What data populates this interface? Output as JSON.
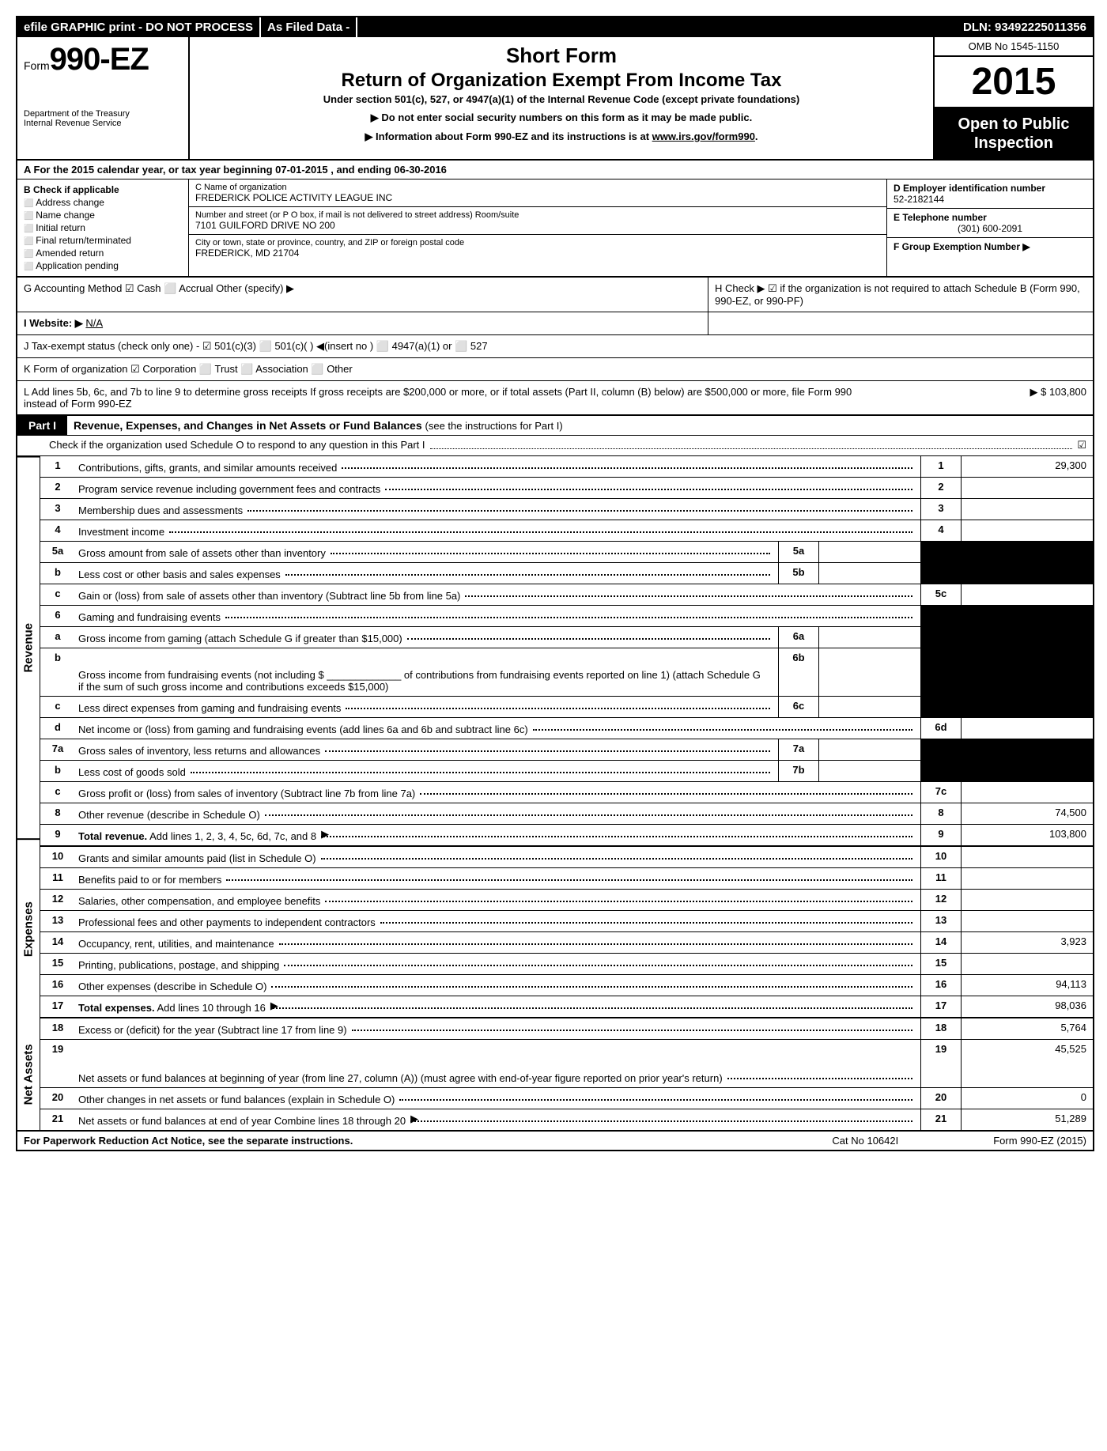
{
  "topbar": {
    "efile": "efile GRAPHIC print - DO NOT PROCESS",
    "asfiled": "As Filed Data -",
    "dln": "DLN: 93492225011356"
  },
  "header": {
    "form_prefix": "Form",
    "form_num": "990-EZ",
    "dept1": "Department of the Treasury",
    "dept2": "Internal Revenue Service",
    "title1": "Short Form",
    "title2": "Return of Organization Exempt From Income Tax",
    "subtitle": "Under section 501(c), 527, or 4947(a)(1) of the Internal Revenue Code (except private foundations)",
    "instr1": "▶ Do not enter social security numbers on this form as it may be made public.",
    "instr2_pre": "▶ Information about Form 990-EZ and its instructions is at ",
    "instr2_link": "www.irs.gov/form990",
    "instr2_post": ".",
    "omb": "OMB No  1545-1150",
    "year": "2015",
    "open": "Open to Public Inspection"
  },
  "rowA": "A  For the 2015 calendar year, or tax year beginning 07-01-2015                           , and ending 06-30-2016",
  "B": {
    "head": "B  Check if applicable",
    "items": [
      "Address change",
      "Name change",
      "Initial return",
      "Final return/terminated",
      "Amended return",
      "Application pending"
    ]
  },
  "C": {
    "name_lbl": "C Name of organization",
    "name": "FREDERICK POLICE ACTIVITY LEAGUE INC",
    "addr_lbl": "Number and street (or P  O  box, if mail is not delivered to street address) Room/suite",
    "addr": "7101 GUILFORD DRIVE NO 200",
    "city_lbl": "City or town, state or province, country, and ZIP or foreign postal code",
    "city": "FREDERICK, MD  21704"
  },
  "D": {
    "ein_lbl": "D Employer identification number",
    "ein": "52-2182144",
    "tel_lbl": "E Telephone number",
    "tel": "(301) 600-2091",
    "grp_lbl": "F Group Exemption Number   ▶"
  },
  "G": {
    "label": "G Accounting Method   ☑ Cash  ⬜ Accrual   Other (specify) ▶",
    "H": "H   Check ▶ ☑ if the organization is not required to attach Schedule B (Form 990, 990-EZ, or 990-PF)"
  },
  "I": {
    "label": "I Website: ▶",
    "val": "N/A"
  },
  "J": "J Tax-exempt status (check only one) - ☑ 501(c)(3) ⬜ 501(c)(  ) ◀(insert no ) ⬜ 4947(a)(1) or ⬜ 527",
  "K": "K Form of organization   ☑ Corporation  ⬜ Trust  ⬜ Association  ⬜ Other",
  "L": {
    "text": "L Add lines 5b, 6c, and 7b to line 9 to determine gross receipts  If gross receipts are $200,000 or more, or if total assets (Part II, column (B) below) are $500,000 or more, file Form 990 instead of Form 990-EZ",
    "amt": "▶ $ 103,800"
  },
  "part1": {
    "badge": "Part I",
    "title": "Revenue, Expenses, and Changes in Net Assets or Fund Balances ",
    "note": "(see the instructions for Part I)",
    "checkO": "Check if the organization used Schedule O to respond to any question in this Part I",
    "checkO_mark": "☑"
  },
  "sections": {
    "revenue": "Revenue",
    "expenses": "Expenses",
    "netassets": "Net Assets"
  },
  "lines": [
    {
      "n": "1",
      "d": "Contributions, gifts, grants, and similar amounts received",
      "ref": "1",
      "amt": "29,300"
    },
    {
      "n": "2",
      "d": "Program service revenue including government fees and contracts",
      "ref": "2",
      "amt": ""
    },
    {
      "n": "3",
      "d": "Membership dues and assessments",
      "ref": "3",
      "amt": ""
    },
    {
      "n": "4",
      "d": "Investment income",
      "ref": "4",
      "amt": ""
    },
    {
      "n": "5a",
      "d": "Gross amount from sale of assets other than inventory",
      "sub": "5a",
      "subval": "",
      "ref_blk": true
    },
    {
      "n": "b",
      "d": "Less  cost or other basis and sales expenses",
      "sub": "5b",
      "subval": "",
      "ref_blk": true
    },
    {
      "n": "c",
      "d": "Gain or (loss) from sale of assets other than inventory (Subtract line 5b from line 5a)",
      "ref": "5c",
      "amt": ""
    },
    {
      "n": "6",
      "d": "Gaming and fundraising events",
      "ref_blk": true,
      "amt_blk": true
    },
    {
      "n": "a",
      "d": "Gross income from gaming (attach Schedule G if greater than $15,000)",
      "sub": "6a",
      "subval": "",
      "ref_blk": true
    },
    {
      "n": "b",
      "d": "Gross income from fundraising events (not including $ _____________ of contributions from fundraising events reported on line 1) (attach Schedule G if the sum of such gross income and contributions exceeds $15,000)",
      "sub": "6b",
      "subval": "",
      "ref_blk": true,
      "tall": true
    },
    {
      "n": "c",
      "d": "Less  direct expenses from gaming and fundraising events",
      "sub": "6c",
      "subval": "",
      "ref_blk": true
    },
    {
      "n": "d",
      "d": "Net income or (loss) from gaming and fundraising events (add lines 6a and 6b and subtract line 6c)",
      "ref": "6d",
      "amt": ""
    },
    {
      "n": "7a",
      "d": "Gross sales of inventory, less returns and allowances",
      "sub": "7a",
      "subval": "",
      "ref_blk": true
    },
    {
      "n": "b",
      "d": "Less  cost of goods sold",
      "sub": "7b",
      "subval": "",
      "ref_blk": true
    },
    {
      "n": "c",
      "d": "Gross profit or (loss) from sales of inventory (Subtract line 7b from line 7a)",
      "ref": "7c",
      "amt": ""
    },
    {
      "n": "8",
      "d": "Other revenue (describe in Schedule O)",
      "ref": "8",
      "amt": "74,500"
    },
    {
      "n": "9",
      "d": "Total revenue. Add lines 1, 2, 3, 4, 5c, 6d, 7c, and 8",
      "ref": "9",
      "amt": "103,800",
      "bold": true,
      "arrow": true
    },
    {
      "n": "10",
      "d": "Grants and similar amounts paid (list in Schedule O)",
      "ref": "10",
      "amt": ""
    },
    {
      "n": "11",
      "d": "Benefits paid to or for members",
      "ref": "11",
      "amt": ""
    },
    {
      "n": "12",
      "d": "Salaries, other compensation, and employee benefits",
      "ref": "12",
      "amt": ""
    },
    {
      "n": "13",
      "d": "Professional fees and other payments to independent contractors",
      "ref": "13",
      "amt": ""
    },
    {
      "n": "14",
      "d": "Occupancy, rent, utilities, and maintenance",
      "ref": "14",
      "amt": "3,923"
    },
    {
      "n": "15",
      "d": "Printing, publications, postage, and shipping",
      "ref": "15",
      "amt": ""
    },
    {
      "n": "16",
      "d": "Other expenses (describe in Schedule O)",
      "ref": "16",
      "amt": "94,113"
    },
    {
      "n": "17",
      "d": "Total expenses. Add lines 10 through 16",
      "ref": "17",
      "amt": "98,036",
      "bold": true,
      "arrow": true
    },
    {
      "n": "18",
      "d": "Excess or (deficit) for the year (Subtract line 17 from line 9)",
      "ref": "18",
      "amt": "5,764"
    },
    {
      "n": "19",
      "d": "Net assets or fund balances at beginning of year (from line 27, column (A)) (must agree with end-of-year figure reported on prior year's return)",
      "ref": "19",
      "amt": "45,525",
      "tall": true
    },
    {
      "n": "20",
      "d": "Other changes in net assets or fund balances (explain in Schedule O)",
      "ref": "20",
      "amt": "0"
    },
    {
      "n": "21",
      "d": "Net assets or fund balances at end of year  Combine lines 18 through 20",
      "ref": "21",
      "amt": "51,289",
      "arrow": true
    }
  ],
  "footer": {
    "pra": "For Paperwork Reduction Act Notice, see the separate instructions.",
    "cat": "Cat  No  10642I",
    "form": "Form 990-EZ (2015)"
  }
}
